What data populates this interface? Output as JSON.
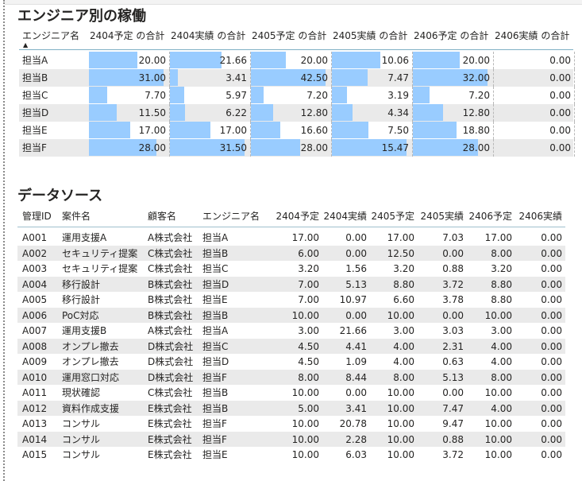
{
  "engineer_visual": {
    "title": "エンジニア別の稼働",
    "row_header": "エンジニア名",
    "sort_indicator": "▲",
    "columns": [
      "2404予定 の合計",
      "2404実績 の合計",
      "2405予定 の合計",
      "2405実績 の合計",
      "2406予定 の合計",
      "2406実績 の合計"
    ],
    "column_max": [
      31.0,
      31.5,
      42.5,
      15.47,
      32.0,
      0.0
    ],
    "rows": [
      {
        "name": "担当A",
        "values": [
          "20.00",
          "21.66",
          "20.00",
          "10.06",
          "20.00",
          "0.00"
        ]
      },
      {
        "name": "担当B",
        "values": [
          "31.00",
          "3.41",
          "42.50",
          "7.47",
          "32.00",
          "0.00"
        ]
      },
      {
        "name": "担当C",
        "values": [
          "7.70",
          "5.97",
          "7.20",
          "3.19",
          "7.20",
          "0.00"
        ]
      },
      {
        "name": "担当D",
        "values": [
          "11.50",
          "6.22",
          "12.80",
          "4.34",
          "12.80",
          "0.00"
        ]
      },
      {
        "name": "担当E",
        "values": [
          "17.00",
          "17.00",
          "16.60",
          "7.50",
          "18.80",
          "0.00"
        ]
      },
      {
        "name": "担当F",
        "values": [
          "28.00",
          "31.50",
          "28.00",
          "15.47",
          "28.00",
          "0.00"
        ]
      }
    ],
    "bar_color": "#99ccff"
  },
  "datasource_visual": {
    "title": "データソース",
    "columns": [
      "管理ID",
      "案件名",
      "顧客名",
      "エンジニア名",
      "2404予定",
      "2404実績",
      "2405予定",
      "2405実績",
      "2406予定",
      "2406実績"
    ],
    "rows": [
      [
        "A001",
        "運用支援A",
        "A株式会社",
        "担当A",
        "17.00",
        "0.00",
        "17.00",
        "7.03",
        "17.00",
        "0.00"
      ],
      [
        "A002",
        "セキュリティ提案",
        "C株式会社",
        "担当B",
        "6.00",
        "0.00",
        "12.50",
        "0.00",
        "8.00",
        "0.00"
      ],
      [
        "A003",
        "セキュリティ提案",
        "C株式会社",
        "担当C",
        "3.20",
        "1.56",
        "3.20",
        "0.88",
        "3.20",
        "0.00"
      ],
      [
        "A004",
        "移行設計",
        "B株式会社",
        "担当D",
        "7.00",
        "5.13",
        "8.80",
        "3.72",
        "8.80",
        "0.00"
      ],
      [
        "A005",
        "移行設計",
        "B株式会社",
        "担当E",
        "7.00",
        "10.97",
        "6.60",
        "3.78",
        "8.80",
        "0.00"
      ],
      [
        "A006",
        "PoC対応",
        "B株式会社",
        "担当B",
        "10.00",
        "0.00",
        "10.00",
        "0.00",
        "10.00",
        "0.00"
      ],
      [
        "A007",
        "運用支援B",
        "A株式会社",
        "担当A",
        "3.00",
        "21.66",
        "3.00",
        "3.03",
        "3.00",
        "0.00"
      ],
      [
        "A008",
        "オンプレ撤去",
        "D株式会社",
        "担当C",
        "4.50",
        "4.41",
        "4.00",
        "2.31",
        "4.00",
        "0.00"
      ],
      [
        "A009",
        "オンプレ撤去",
        "D株式会社",
        "担当D",
        "4.50",
        "1.09",
        "4.00",
        "0.63",
        "4.00",
        "0.00"
      ],
      [
        "A010",
        "運用窓口対応",
        "D株式会社",
        "担当F",
        "8.00",
        "8.44",
        "8.00",
        "5.13",
        "8.00",
        "0.00"
      ],
      [
        "A011",
        "現状確認",
        "C株式会社",
        "担当B",
        "10.00",
        "0.00",
        "10.00",
        "0.00",
        "10.00",
        "0.00"
      ],
      [
        "A012",
        "資料作成支援",
        "E株式会社",
        "担当B",
        "5.00",
        "3.41",
        "10.00",
        "7.47",
        "4.00",
        "0.00"
      ],
      [
        "A013",
        "コンサル",
        "E株式会社",
        "担当F",
        "10.00",
        "20.78",
        "10.00",
        "9.47",
        "10.00",
        "0.00"
      ],
      [
        "A014",
        "コンサル",
        "E株式会社",
        "担当F",
        "10.00",
        "2.28",
        "10.00",
        "0.88",
        "10.00",
        "0.00"
      ],
      [
        "A015",
        "コンサル",
        "E株式会社",
        "担当E",
        "10.00",
        "6.03",
        "10.00",
        "3.72",
        "10.00",
        "0.00"
      ]
    ]
  }
}
